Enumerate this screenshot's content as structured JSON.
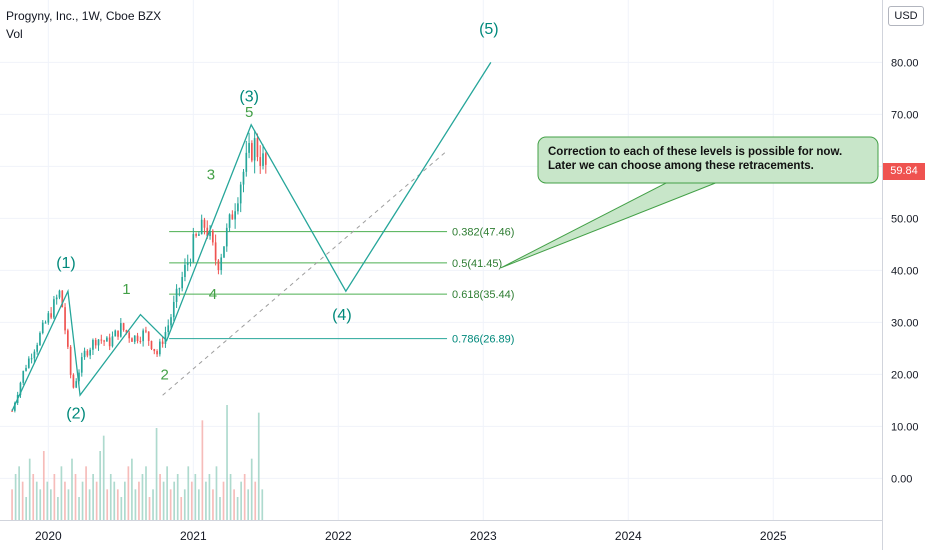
{
  "header": {
    "title": "Progyny, Inc., 1W, Cboe BZX",
    "volume_label": "Vol",
    "currency": "USD"
  },
  "colors": {
    "up": "#26a69a",
    "down": "#ef5350",
    "wave": "#26a69a",
    "fib_line": "#4caf50",
    "fib_text": "#2e7d32",
    "annotation_fill": "#c8e6c9",
    "annotation_border": "#43a047"
  },
  "chart_data": {
    "type": "candlestick",
    "x_axis": {
      "ticks": [
        "2020",
        "2021",
        "2022",
        "2023",
        "2024",
        "2025"
      ],
      "range": [
        "2019-09",
        "2025-10"
      ]
    },
    "y_axis": {
      "ticks": [
        0,
        10,
        20,
        30,
        40,
        50,
        60,
        70,
        80
      ],
      "tick_labels": [
        "0.00",
        "10.00",
        "20.00",
        "30.00",
        "40.00",
        "50.00",
        "60.00",
        "70.00",
        "80.00"
      ],
      "range": [
        -8,
        92
      ]
    },
    "last_price": 59.84,
    "last_price_label": "59.84",
    "candle_path": [
      [
        "2019-10",
        13.0
      ],
      [
        "2019-11",
        21.0
      ],
      [
        "2019-12",
        26.0
      ],
      [
        "2020-01",
        31.0
      ],
      [
        "2020-02",
        36.0
      ],
      [
        "2020-03",
        17.0
      ],
      [
        "2020-04",
        24.0
      ],
      [
        "2020-05",
        27.0
      ],
      [
        "2020-06",
        26.0
      ],
      [
        "2020-07",
        29.0
      ],
      [
        "2020-08",
        27.0
      ],
      [
        "2020-09",
        28.0
      ],
      [
        "2020-10",
        24.0
      ],
      [
        "2020-11",
        30.0
      ],
      [
        "2020-12",
        38.0
      ],
      [
        "2021-01",
        45.0
      ],
      [
        "2021-02",
        49.0
      ],
      [
        "2021-03",
        41.0
      ],
      [
        "2021-04",
        49.0
      ],
      [
        "2021-05",
        58.0
      ],
      [
        "2021-06",
        64.5
      ],
      [
        "2021-07",
        59.84
      ]
    ],
    "volume_tokens": [
      4,
      6,
      7,
      5,
      3,
      8,
      6,
      5,
      4,
      9,
      5,
      4,
      6,
      3,
      7,
      5,
      4,
      8,
      6,
      3,
      5,
      7,
      4,
      6,
      5,
      9,
      11,
      4,
      6,
      5,
      4,
      3,
      5,
      7,
      8,
      4,
      5,
      6,
      7,
      3,
      4,
      12,
      6,
      5,
      7,
      4,
      5,
      6,
      3,
      4,
      7,
      5,
      6,
      4,
      13,
      5,
      6,
      4,
      7,
      3,
      5,
      15,
      6,
      4,
      3,
      5,
      6,
      4,
      8,
      5,
      14,
      4
    ],
    "wave_path": [
      [
        "2019-10-01",
        13.0
      ],
      [
        "2020-02-20",
        36.0
      ],
      [
        "2020-03-20",
        16.0
      ],
      [
        "2020-08-20",
        31.5
      ],
      [
        "2020-10-25",
        26.5
      ],
      [
        "2021-05-25",
        68.0
      ],
      [
        "2022-01-20",
        36.0
      ],
      [
        "2023-01-20",
        80.0
      ]
    ],
    "trend_line": [
      [
        "2020-10-15",
        16.0
      ],
      [
        "2022-10-01",
        63.0
      ]
    ],
    "wave_labels": [
      {
        "text": "(1)",
        "x": "2020-02-15",
        "y": 40.5
      },
      {
        "text": "(2)",
        "x": "2020-03-10",
        "y": 11.5
      },
      {
        "text": "1",
        "x": "2020-07-15",
        "y": 35.5
      },
      {
        "text": "2",
        "x": "2020-10-20",
        "y": 19.0
      },
      {
        "text": "3",
        "x": "2021-02-15",
        "y": 57.5
      },
      {
        "text": "(3)",
        "x": "2021-05-20",
        "y": 72.5
      },
      {
        "text": "5",
        "x": "2021-05-20",
        "y": 69.5
      },
      {
        "text": "4",
        "x": "2021-02-20",
        "y": 34.5
      },
      {
        "text": "(4)",
        "x": "2022-01-10",
        "y": 30.5
      },
      {
        "text": "(5)",
        "x": "2023-01-15",
        "y": 85.5
      }
    ],
    "fib_levels": [
      {
        "label": "0.382(47.46)",
        "value": 47.46,
        "from": "2020-11-01"
      },
      {
        "label": "0.5(41.45)",
        "value": 41.45,
        "from": "2020-11-01"
      },
      {
        "label": "0.618(35.44)",
        "value": 35.44,
        "from": "2020-11-01"
      },
      {
        "label": "0.786(26.89)",
        "value": 26.89,
        "from": "2020-11-01"
      }
    ],
    "fib_end": "2022-10-01",
    "annotation": {
      "lines": [
        "Correction to each of these levels is possible for now.",
        "Later we can choose among these retracements."
      ],
      "pointer_to": [
        "2023-02-15",
        40.5
      ]
    }
  }
}
